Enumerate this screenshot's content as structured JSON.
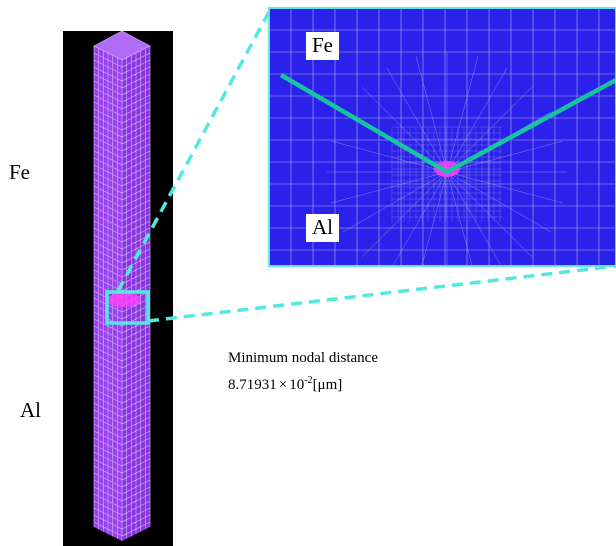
{
  "labels": {
    "fe_left": "Fe",
    "al_left": "Al",
    "fe_inset": "Fe",
    "al_inset": "Al"
  },
  "annotation": {
    "line1": "Minimum nodal distance",
    "value": "8.71931",
    "times": "×",
    "base": "10",
    "exponent": "-2",
    "unit": "[μm]"
  },
  "colors": {
    "black_panel": "#000000",
    "mesh_fill": "#9a42f0",
    "mesh_line": "#d8b6ff",
    "inset_fill": "#2a22ea",
    "inset_line": "#c8c0f0",
    "interface_line": "#16c4a0",
    "highlight": "#52e8e0",
    "dense_node": "#ff40ff"
  }
}
